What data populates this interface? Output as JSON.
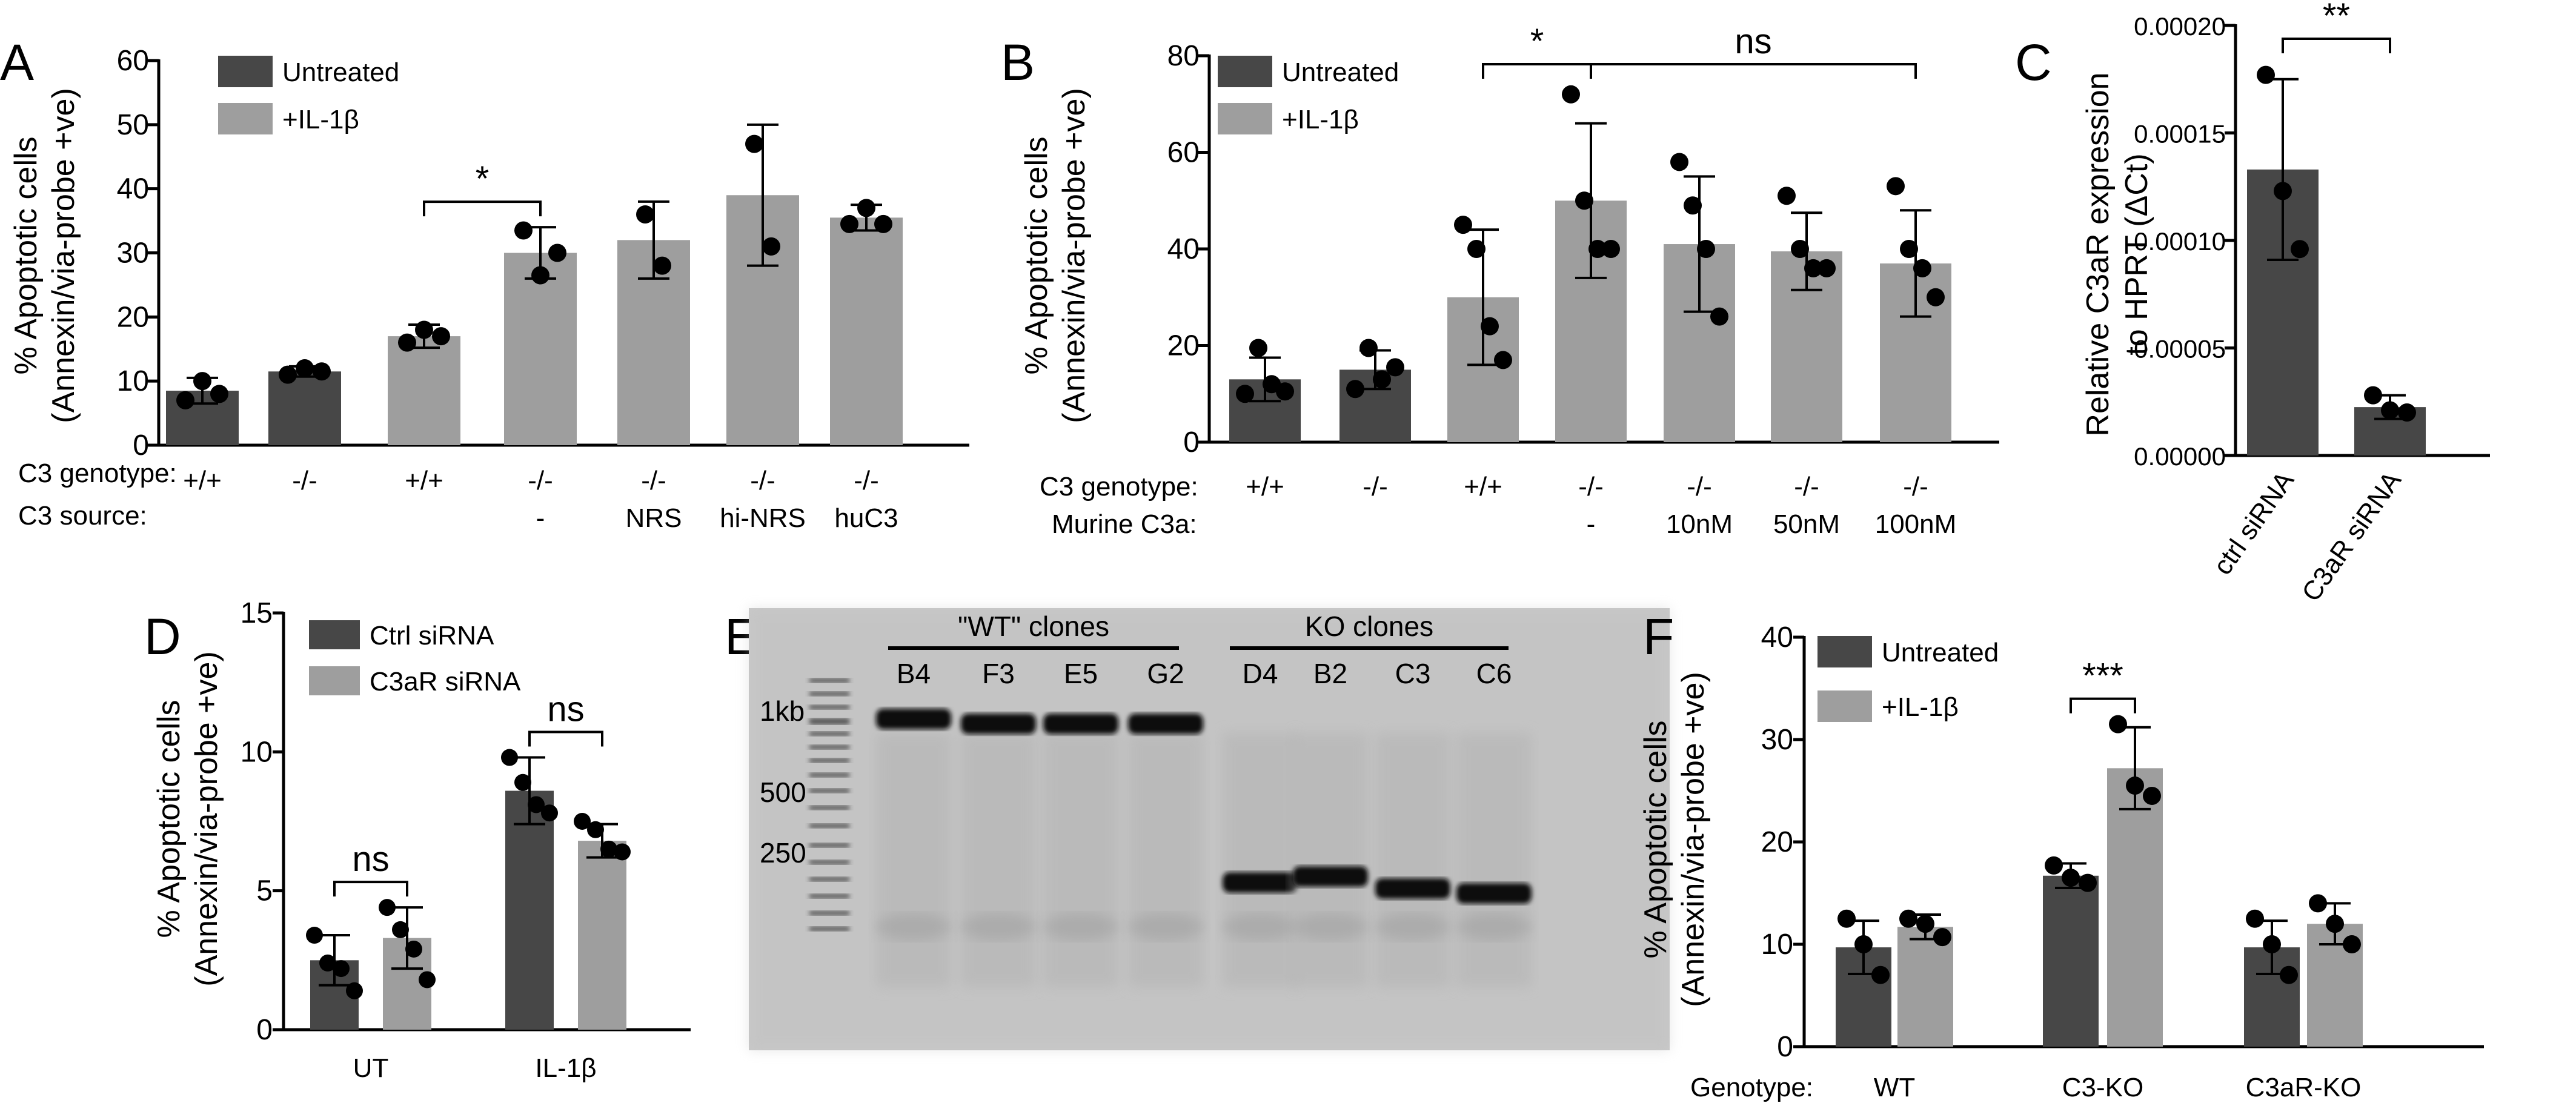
{
  "colors": {
    "untreated": "#474747",
    "il1b": "#9e9e9e",
    "ctrl": "#474747",
    "c3ar": "#9e9e9e"
  },
  "chart_data": [
    {
      "panel": "A",
      "type": "bar",
      "ylabel_line1": "% Apoptotic cells",
      "ylabel_line2": "(Annexin/via-probe +ve)",
      "ylim": [
        0,
        60
      ],
      "yticks": [
        "0",
        "10",
        "20",
        "30",
        "40",
        "50",
        "60"
      ],
      "legend": [
        "Untreated",
        "+IL-1β"
      ],
      "row_labels": [
        "C3 genotype:",
        "C3 source:"
      ],
      "genotype": [
        "+/+",
        "-/-",
        "+/+",
        "-/-",
        "-/-",
        "-/-",
        "-/-"
      ],
      "source": [
        "",
        "",
        "",
        "-",
        "NRS",
        "hi-NRS",
        "huC3"
      ],
      "bars": [
        {
          "value": 8.5,
          "sd": 2,
          "group": 0,
          "points": [
            7,
            10,
            8
          ]
        },
        {
          "value": 11.5,
          "sd": 0.8,
          "group": 0,
          "points": [
            11,
            12,
            11.5
          ]
        },
        {
          "value": 17,
          "sd": 1.8,
          "group": 1,
          "points": [
            16,
            18,
            17
          ]
        },
        {
          "value": 30,
          "sd": 4,
          "group": 1,
          "points": [
            33.5,
            26.5,
            30
          ]
        },
        {
          "value": 32,
          "sd": 6,
          "group": 1,
          "points": [
            36,
            28
          ]
        },
        {
          "value": 39,
          "sd": 11,
          "group": 1,
          "points": [
            47,
            31
          ]
        },
        {
          "value": 35.5,
          "sd": 2,
          "group": 1,
          "points": [
            34.5,
            37,
            34.5
          ]
        }
      ],
      "sig": [
        {
          "from": 2,
          "to": 3,
          "label": "*"
        }
      ]
    },
    {
      "panel": "B",
      "type": "bar",
      "ylabel_line1": "% Apoptotic cells",
      "ylabel_line2": "(Annexin/via-probe +ve)",
      "ylim": [
        0,
        80
      ],
      "yticks": [
        "0",
        "20",
        "40",
        "60",
        "80"
      ],
      "legend": [
        "Untreated",
        "+IL-1β"
      ],
      "row_labels": [
        "C3 genotype:",
        "Murine C3a:"
      ],
      "genotype": [
        "+/+",
        "-/-",
        "+/+",
        "-/-",
        "-/-",
        "-/-",
        "-/-"
      ],
      "source": [
        "",
        "",
        "",
        "-",
        "10nM",
        "50nM",
        "100nM"
      ],
      "bars": [
        {
          "value": 13,
          "sd": 4.5,
          "group": 0,
          "points": [
            10,
            19.5,
            12,
            10.5
          ]
        },
        {
          "value": 15,
          "sd": 4,
          "group": 0,
          "points": [
            11,
            19.5,
            13,
            15.5
          ]
        },
        {
          "value": 30,
          "sd": 14,
          "group": 1,
          "points": [
            45,
            40,
            24,
            17
          ]
        },
        {
          "value": 50,
          "sd": 16,
          "group": 1,
          "points": [
            72,
            50,
            40,
            40
          ]
        },
        {
          "value": 41,
          "sd": 14,
          "group": 1,
          "points": [
            58,
            49,
            40,
            26
          ]
        },
        {
          "value": 39.5,
          "sd": 8,
          "group": 1,
          "points": [
            51,
            40,
            36,
            36
          ]
        },
        {
          "value": 37,
          "sd": 11,
          "group": 1,
          "points": [
            53,
            40,
            36,
            30
          ]
        }
      ],
      "sig": [
        {
          "from": 2,
          "to": 3,
          "label": "*"
        },
        {
          "from": 3,
          "to": 6,
          "label": "ns"
        }
      ]
    },
    {
      "panel": "C",
      "type": "bar",
      "ylabel_line1": "Relative C3aR expression",
      "ylabel_line2": "to HPRT (ΔCt)",
      "ylim": [
        0,
        0.0002
      ],
      "yticks": [
        "0.00000",
        "0.00005",
        "0.00010",
        "0.00015",
        "0.00020"
      ],
      "categories": [
        "ctrl siRNA",
        "C3aR siRNA"
      ],
      "bars": [
        {
          "value": 0.000133,
          "sd": 4.2e-05,
          "group": 0,
          "points": [
            0.000177,
            0.000123,
            9.6e-05
          ]
        },
        {
          "value": 2.25e-05,
          "sd": 5.5e-06,
          "group": 0,
          "points": [
            2.8e-05,
            2.1e-05,
            2e-05
          ]
        }
      ],
      "sig": [
        {
          "from": 0,
          "to": 1,
          "label": "**"
        }
      ]
    },
    {
      "panel": "D",
      "type": "bar",
      "ylabel_line1": "% Apoptotic cells",
      "ylabel_line2": "(Annexin/via-probe +ve)",
      "ylim": [
        0,
        15
      ],
      "yticks": [
        "0",
        "5",
        "10",
        "15"
      ],
      "legend": [
        "Ctrl siRNA",
        "C3aR siRNA"
      ],
      "categories": [
        "UT",
        "IL-1β"
      ],
      "bars": [
        {
          "value": 2.5,
          "sd": 0.9,
          "group": 0,
          "points": [
            3.4,
            2.4,
            2.2,
            1.4
          ]
        },
        {
          "value": 3.3,
          "sd": 1.1,
          "group": 1,
          "points": [
            4.4,
            3.6,
            2.9,
            1.8
          ]
        },
        {
          "value": 8.6,
          "sd": 1.2,
          "group": 0,
          "points": [
            9.8,
            8.9,
            8.1,
            7.8
          ]
        },
        {
          "value": 6.8,
          "sd": 0.6,
          "group": 1,
          "points": [
            7.5,
            7.2,
            6.5,
            6.4
          ]
        }
      ],
      "sig": [
        {
          "from": 0,
          "to": 1,
          "label": "ns"
        },
        {
          "from": 2,
          "to": 3,
          "label": "ns"
        }
      ]
    },
    {
      "panel": "F",
      "type": "bar",
      "ylabel_line1": "% Apoptotic cells",
      "ylabel_line2": "(Annexin/via-probe +ve)",
      "ylim": [
        0,
        40
      ],
      "yticks": [
        "0",
        "10",
        "20",
        "30",
        "40"
      ],
      "legend": [
        "Untreated",
        "+IL-1β"
      ],
      "row_label": "Genotype:",
      "categories": [
        "WT",
        "C3-KO",
        "C3aR-KO"
      ],
      "bars": [
        {
          "value": 9.7,
          "sd": 2.6,
          "group": 0,
          "points": [
            12.5,
            10,
            7
          ]
        },
        {
          "value": 11.7,
          "sd": 1.2,
          "group": 1,
          "points": [
            12.5,
            12,
            10.7
          ]
        },
        {
          "value": 16.7,
          "sd": 1.2,
          "group": 0,
          "points": [
            17.7,
            16.5,
            16.0
          ]
        },
        {
          "value": 27.2,
          "sd": 4,
          "group": 1,
          "points": [
            31.5,
            25.5,
            24.5
          ]
        },
        {
          "value": 9.7,
          "sd": 2.6,
          "group": 0,
          "points": [
            12.5,
            10,
            7
          ]
        },
        {
          "value": 12,
          "sd": 2,
          "group": 1,
          "points": [
            14,
            12,
            10
          ]
        }
      ],
      "sig": [
        {
          "from": 2,
          "to": 3,
          "label": "***"
        }
      ]
    }
  ],
  "gel": {
    "panel": "E",
    "group_labels": [
      "\"WT\" clones",
      "KO clones"
    ],
    "lane_labels": [
      "B4",
      "F3",
      "E5",
      "G2",
      "D4",
      "B2",
      "C3",
      "C6"
    ],
    "ladder_labels": [
      "1kb",
      "500",
      "250"
    ]
  },
  "panel_letters": [
    "A",
    "B",
    "C",
    "D",
    "E",
    "F"
  ]
}
